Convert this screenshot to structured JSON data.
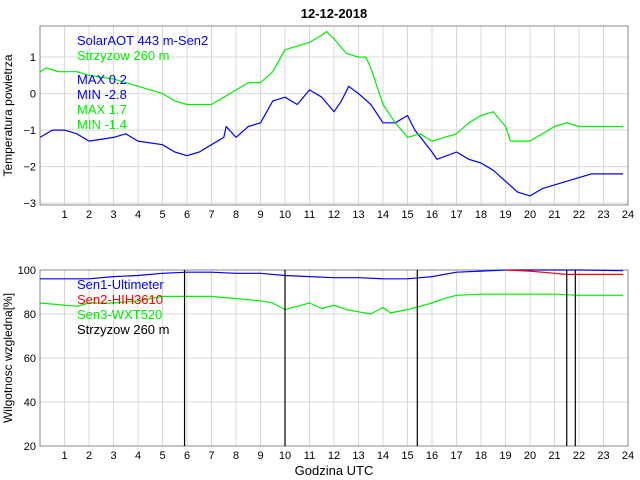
{
  "chart_data": [
    {
      "type": "line",
      "title": "12-12-2018",
      "xlabel": "",
      "ylabel": "Temperatura powietrza",
      "xlim": [
        0,
        24
      ],
      "ylim": [
        -3.05,
        1.85
      ],
      "xticks": [
        1,
        2,
        3,
        4,
        5,
        6,
        7,
        8,
        9,
        10,
        11,
        12,
        13,
        14,
        15,
        16,
        17,
        18,
        19,
        20,
        21,
        22,
        23,
        24
      ],
      "yticks": [
        -3,
        -2,
        -1,
        0,
        1
      ],
      "grid": true,
      "legend_position": "top-left",
      "legend": [
        "SolarAOT 443 m-Sen2",
        "Strzyzow 260 m"
      ],
      "annotations": [
        "MAX 0.2",
        "MIN -2.8",
        "MAX 1.7",
        "MIN -1.4"
      ],
      "annotation_colors": [
        "#0000ff",
        "#0000ff",
        "#00ee00",
        "#00ee00"
      ],
      "series": [
        {
          "name": "SolarAOT 443 m-Sen2",
          "color": "#0000ff",
          "x": [
            0,
            0.5,
            1,
            1.5,
            2,
            3,
            3.5,
            4,
            5,
            5.5,
            6,
            6.5,
            7,
            7.5,
            7.6,
            8,
            8.5,
            9,
            9.5,
            10,
            10.5,
            11,
            11.5,
            12,
            12.3,
            12.6,
            13,
            13.5,
            14,
            14.5,
            15,
            15.3,
            16,
            16.2,
            17,
            17.5,
            18,
            18.5,
            19,
            19.5,
            20,
            20.5,
            21,
            22,
            22.5,
            23.8
          ],
          "y": [
            -1.2,
            -1.0,
            -1.0,
            -1.1,
            -1.3,
            -1.2,
            -1.1,
            -1.3,
            -1.4,
            -1.6,
            -1.7,
            -1.6,
            -1.4,
            -1.2,
            -0.9,
            -1.2,
            -0.9,
            -0.8,
            -0.2,
            -0.1,
            -0.3,
            0.1,
            -0.1,
            -0.5,
            -0.2,
            0.2,
            0.0,
            -0.3,
            -0.8,
            -0.8,
            -0.6,
            -1.0,
            -1.6,
            -1.8,
            -1.6,
            -1.8,
            -1.9,
            -2.1,
            -2.4,
            -2.7,
            -2.8,
            -2.6,
            -2.5,
            -2.3,
            -2.2,
            -2.2
          ]
        },
        {
          "name": "Strzyzow 260 m",
          "color": "#00ee00",
          "x": [
            0,
            0.25,
            0.75,
            1.5,
            2,
            3,
            3.5,
            4,
            5,
            5.5,
            6,
            7,
            7.5,
            8,
            8.5,
            9,
            9.5,
            10,
            10.5,
            11,
            11.5,
            11.7,
            12,
            12.5,
            13,
            13.3,
            13.5,
            14,
            14.5,
            15,
            15.5,
            16,
            16.5,
            17,
            17.5,
            18,
            18.5,
            19,
            19.2,
            20,
            20.5,
            21,
            21.5,
            22,
            23.8
          ],
          "y": [
            0.6,
            0.7,
            0.6,
            0.6,
            0.5,
            0.4,
            0.3,
            0.2,
            0.0,
            -0.2,
            -0.3,
            -0.3,
            -0.1,
            0.1,
            0.3,
            0.3,
            0.6,
            1.2,
            1.3,
            1.4,
            1.6,
            1.7,
            1.5,
            1.1,
            1.0,
            1.0,
            0.7,
            -0.3,
            -0.8,
            -1.2,
            -1.1,
            -1.3,
            -1.2,
            -1.1,
            -0.8,
            -0.6,
            -0.5,
            -0.9,
            -1.3,
            -1.3,
            -1.1,
            -0.9,
            -0.8,
            -0.9,
            -0.9
          ]
        }
      ]
    },
    {
      "type": "line",
      "title": "",
      "xlabel": "Godzina UTC",
      "ylabel": "Wilgotnosc wzgledna[%]",
      "xlim": [
        0,
        24
      ],
      "ylim": [
        20,
        100
      ],
      "xticks": [
        1,
        2,
        3,
        4,
        5,
        6,
        7,
        8,
        9,
        10,
        11,
        12,
        13,
        14,
        15,
        16,
        17,
        18,
        19,
        20,
        21,
        22,
        23,
        24
      ],
      "yticks": [
        20,
        40,
        60,
        80,
        100
      ],
      "grid": true,
      "legend_position": "top-left",
      "legend": [
        "Sen1-Ultimeter",
        "Sen2-HIH3610",
        "Sen3-WXT520",
        "Strzyzow 260 m"
      ],
      "series": [
        {
          "name": "Sen1-Ultimeter",
          "color": "#0000ff",
          "x": [
            0,
            1,
            2,
            3,
            4,
            5,
            6,
            7,
            8,
            9,
            10,
            11,
            12,
            13,
            14,
            15,
            15.5,
            16,
            17,
            18,
            19,
            20,
            21,
            22,
            23.8
          ],
          "y": [
            96,
            96,
            96,
            97,
            97.5,
            98.5,
            99,
            99,
            98.5,
            98.5,
            97.5,
            97,
            96.5,
            96.5,
            96,
            96,
            96.5,
            97,
            99,
            99.5,
            100,
            100,
            100,
            100,
            99.7
          ]
        },
        {
          "name": "Sen2-HIH3610",
          "color": "#ff0000",
          "x": [
            19,
            20,
            21,
            21.5,
            22,
            23.8
          ],
          "y": [
            100,
            99.5,
            98.5,
            98,
            98,
            98
          ]
        },
        {
          "name": "Sen3-WXT520",
          "color": "#00ee00",
          "x": [
            0,
            1,
            1.5,
            2,
            3,
            4,
            5,
            6,
            7,
            8,
            9,
            9.5,
            10,
            10.5,
            11,
            11.5,
            12,
            12.5,
            13,
            13.5,
            14,
            14.3,
            15,
            15.5,
            16,
            16.5,
            17,
            18,
            19,
            20,
            21,
            22,
            23.8
          ],
          "y": [
            85,
            84,
            83.5,
            85,
            85,
            86,
            88,
            88,
            88,
            87,
            86,
            85,
            82,
            83.5,
            85,
            82.5,
            84,
            82,
            81,
            80,
            83,
            80.5,
            82,
            83.5,
            85,
            87,
            88.5,
            89,
            89,
            89,
            89,
            88.5,
            88.5
          ]
        },
        {
          "name": "Strzyzow 260 m",
          "color": "#000000",
          "type": "spikes",
          "x": [
            5.9,
            10.0,
            15.4,
            21.5,
            21.85
          ],
          "y_low": [
            20,
            20,
            20,
            20,
            20
          ],
          "y_high": [
            100,
            100,
            100,
            100,
            100
          ]
        }
      ]
    }
  ]
}
